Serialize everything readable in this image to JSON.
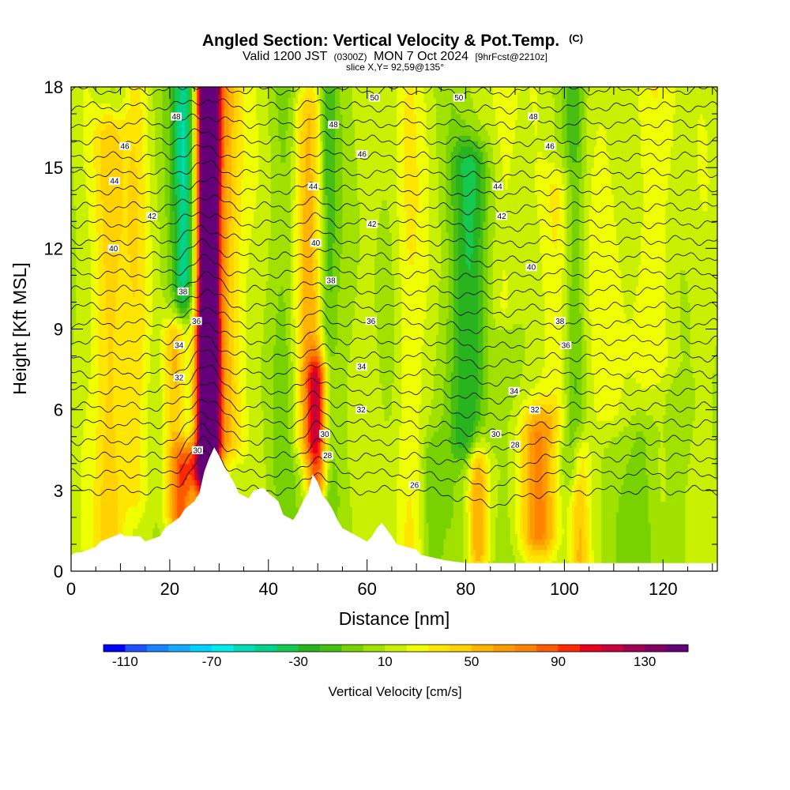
{
  "header": {
    "title": "Angled Section: Vertical Velocity & Pot.Temp.",
    "title_unit": "(C)",
    "valid_a": "Valid 1200 JST",
    "valid_b": "(0300Z)",
    "valid_c": "MON 7 Oct 2024",
    "valid_d": "[9hrFcst@2210z]",
    "slice": "slice X,Y= 92,59@135°"
  },
  "chart_data": {
    "type": "heatmap",
    "xlabel": "Distance [nm]",
    "ylabel": "Height [Kft MSL]",
    "xlim": [
      0,
      131
    ],
    "ylim": [
      0,
      18
    ],
    "x_ticks": [
      "0",
      "20",
      "40",
      "60",
      "80",
      "100",
      "120"
    ],
    "x_tick_values": [
      0,
      20,
      40,
      60,
      80,
      100,
      120
    ],
    "y_ticks": [
      "0",
      "3",
      "6",
      "9",
      "12",
      "15",
      "18"
    ],
    "y_tick_values": [
      0,
      3,
      6,
      9,
      12,
      15,
      18
    ],
    "colorbar": {
      "label": "Vertical Velocity [cm/s]",
      "tick_labels": [
        "-110",
        "-70",
        "-30",
        "10",
        "50",
        "90",
        "130"
      ],
      "tick_values": [
        -110,
        -70,
        -30,
        10,
        50,
        90,
        130
      ],
      "min": -120,
      "max": 150,
      "colors": [
        "#0000ff",
        "#1e50ff",
        "#1a82ff",
        "#14aaff",
        "#00d2ff",
        "#00ecec",
        "#00dcb4",
        "#00d28c",
        "#14c850",
        "#28b41e",
        "#46be14",
        "#78d200",
        "#a0e100",
        "#c8f000",
        "#f0ff00",
        "#ffe600",
        "#ffd200",
        "#ffb400",
        "#ff9b00",
        "#ff8200",
        "#ff5a00",
        "#ff2800",
        "#e6001e",
        "#c8003c",
        "#a00050",
        "#820064",
        "#640078"
      ]
    },
    "terrain_profile": {
      "x": [
        0,
        1,
        2,
        5,
        6,
        10,
        11,
        14,
        15,
        18,
        19,
        22,
        23,
        25,
        26,
        27,
        28,
        29,
        30,
        31,
        33,
        34,
        36,
        37,
        39,
        40,
        42,
        43,
        45,
        46,
        47,
        48,
        49,
        50,
        51,
        52,
        53,
        54,
        55,
        56,
        57,
        58,
        60,
        61,
        62,
        63,
        65,
        66,
        70,
        71,
        76,
        80,
        131
      ],
      "y": [
        0.6,
        0.7,
        0.7,
        0.9,
        1.1,
        1.4,
        1.3,
        1.3,
        1.1,
        1.3,
        1.6,
        2.0,
        2.3,
        2.6,
        2.9,
        3.7,
        4.2,
        4.6,
        4.3,
        3.9,
        3.3,
        2.9,
        2.7,
        3.0,
        3.1,
        2.9,
        2.6,
        2.1,
        1.9,
        2.2,
        2.6,
        2.9,
        3.6,
        3.3,
        2.8,
        2.6,
        2.3,
        1.9,
        1.6,
        1.5,
        1.4,
        1.3,
        1.1,
        1.3,
        1.6,
        1.8,
        1.3,
        1.0,
        0.8,
        0.6,
        0.4,
        0.3,
        0.3
      ]
    },
    "velocity_features": [
      {
        "x": 28,
        "y_min": 3.0,
        "y_max": 18,
        "value": 140,
        "width": 1.8
      },
      {
        "x": 27,
        "y_min": 4.0,
        "y_max": 18,
        "value": 95,
        "width": 3.0
      },
      {
        "x": 22,
        "y_min": 2.2,
        "y_max": 8.5,
        "value": 80,
        "width": 2.8
      },
      {
        "x": 23.5,
        "y_min": 5.5,
        "y_max": 18,
        "value": -75,
        "width": 2.6
      },
      {
        "x": 31.5,
        "y_min": 5.0,
        "y_max": 18,
        "value": 45,
        "width": 3.2
      },
      {
        "x": 8,
        "y_min": 0.8,
        "y_max": 16,
        "value": 40,
        "width": 3.2
      },
      {
        "x": 48,
        "y_min": 5.0,
        "y_max": 17,
        "value": 40,
        "width": 3.0
      },
      {
        "x": 50,
        "y_min": 3.5,
        "y_max": 7.0,
        "value": 75,
        "width": 2.2
      },
      {
        "x": 52,
        "y_min": 3.0,
        "y_max": 18,
        "value": -25,
        "width": 1.8
      },
      {
        "x": 44,
        "y_min": 2.0,
        "y_max": 18,
        "value": -10,
        "width": 3.0
      },
      {
        "x": 81,
        "y_min": 5.0,
        "y_max": 15,
        "value": -45,
        "width": 3.6
      },
      {
        "x": 95,
        "y_min": 1.5,
        "y_max": 5.0,
        "value": 55,
        "width": 3.8
      },
      {
        "x": 82.5,
        "y_min": 0.8,
        "y_max": 4.0,
        "value": 45,
        "width": 2.0
      },
      {
        "x": 102,
        "y_min": 4.0,
        "y_max": 18,
        "value": -25,
        "width": 2.2
      },
      {
        "x": 99,
        "y_min": 6.0,
        "y_max": 14,
        "value": 25,
        "width": 3.2
      },
      {
        "x": 103,
        "y_min": 0.5,
        "y_max": 4.0,
        "value": 40,
        "width": 2.0
      },
      {
        "x": 110,
        "y_min": 6.0,
        "y_max": 18,
        "value": 15,
        "width": 4.0
      },
      {
        "x": 120,
        "y_min": 8.0,
        "y_max": 18,
        "value": 15,
        "width": 5.0
      },
      {
        "x": 68,
        "y_min": 0.5,
        "y_max": 18,
        "value": 20,
        "width": 3.0
      },
      {
        "x": 88,
        "y_min": 10.0,
        "y_max": 18,
        "value": 20,
        "width": 3.0
      },
      {
        "x": 116,
        "y_min": 0.5,
        "y_max": 5.0,
        "value": -20,
        "width": 3.0
      },
      {
        "x": 73,
        "y_min": 0.5,
        "y_max": 4.0,
        "value": -20,
        "width": 2.0
      },
      {
        "x": 13,
        "y_min": 3.0,
        "y_max": 18,
        "value": 20,
        "width": 2.5
      }
    ],
    "theta_contour_values": [
      26,
      27,
      28,
      29,
      30,
      31,
      32,
      33,
      34,
      35,
      36,
      37,
      38,
      39,
      40,
      41,
      42,
      43,
      44,
      45,
      46,
      47,
      48,
      49,
      50,
      51
    ],
    "theta_contour_labels": [
      {
        "text": "50",
        "x": 61.5,
        "y": 17.6
      },
      {
        "text": "50",
        "x": 78.6,
        "y": 17.6
      },
      {
        "text": "48",
        "x": 21.3,
        "y": 16.9
      },
      {
        "text": "48",
        "x": 53.2,
        "y": 16.6
      },
      {
        "text": "48",
        "x": 93.7,
        "y": 16.9
      },
      {
        "text": "46",
        "x": 10.9,
        "y": 15.8
      },
      {
        "text": "46",
        "x": 59.0,
        "y": 15.5
      },
      {
        "text": "46",
        "x": 97.1,
        "y": 15.8
      },
      {
        "text": "44",
        "x": 8.8,
        "y": 14.5
      },
      {
        "text": "44",
        "x": 49.1,
        "y": 14.3
      },
      {
        "text": "44",
        "x": 86.5,
        "y": 14.3
      },
      {
        "text": "42",
        "x": 16.4,
        "y": 13.2
      },
      {
        "text": "42",
        "x": 61.0,
        "y": 12.9
      },
      {
        "text": "42",
        "x": 87.3,
        "y": 13.2
      },
      {
        "text": "40",
        "x": 8.6,
        "y": 12.0
      },
      {
        "text": "40",
        "x": 49.6,
        "y": 12.2
      },
      {
        "text": "40",
        "x": 93.3,
        "y": 11.3
      },
      {
        "text": "38",
        "x": 22.7,
        "y": 10.4
      },
      {
        "text": "38",
        "x": 52.7,
        "y": 10.8
      },
      {
        "text": "38",
        "x": 99.1,
        "y": 9.3
      },
      {
        "text": "36",
        "x": 25.4,
        "y": 9.3
      },
      {
        "text": "36",
        "x": 60.8,
        "y": 9.3
      },
      {
        "text": "36",
        "x": 100.3,
        "y": 8.4
      },
      {
        "text": "34",
        "x": 21.9,
        "y": 8.4
      },
      {
        "text": "34",
        "x": 58.9,
        "y": 7.6
      },
      {
        "text": "34",
        "x": 89.8,
        "y": 6.7
      },
      {
        "text": "32",
        "x": 21.9,
        "y": 7.2
      },
      {
        "text": "32",
        "x": 58.8,
        "y": 6.0
      },
      {
        "text": "32",
        "x": 94.0,
        "y": 6.0
      },
      {
        "text": "30",
        "x": 25.6,
        "y": 4.5
      },
      {
        "text": "30",
        "x": 51.4,
        "y": 5.1
      },
      {
        "text": "30",
        "x": 86.1,
        "y": 5.1
      },
      {
        "text": "28",
        "x": 52.0,
        "y": 4.3
      },
      {
        "text": "28",
        "x": 90.0,
        "y": 4.7
      },
      {
        "text": "26",
        "x": 69.6,
        "y": 3.2
      }
    ]
  }
}
